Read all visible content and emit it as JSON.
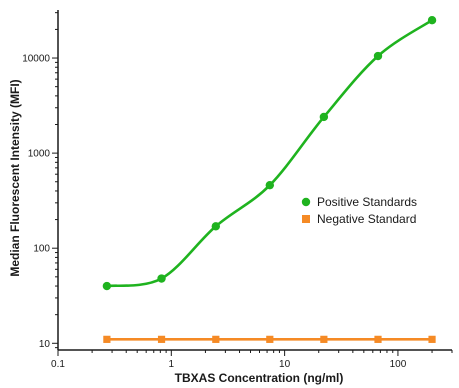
{
  "chart_data": {
    "type": "scatter",
    "title": "",
    "xlabel": "TBXAS Concentration (ng/ml)",
    "ylabel": "Median Fluorescent Intensity (MFI)",
    "xscale": "log",
    "yscale": "log",
    "xlim": [
      0.1,
      300
    ],
    "ylim": [
      8.5,
      32000
    ],
    "x_ticks": [
      0.1,
      1,
      10,
      100
    ],
    "x_tick_labels": [
      "0.1",
      "1",
      "10",
      "100"
    ],
    "y_ticks": [
      10,
      100,
      1000,
      10000
    ],
    "y_tick_labels": [
      "10",
      "100",
      "1000",
      "10000"
    ],
    "grid": false,
    "legend_position": "right",
    "series": [
      {
        "name": "Positive Standards",
        "color": "#1fb31f",
        "marker": "circle",
        "fit": "4PL curve",
        "x": [
          0.27,
          0.82,
          2.47,
          7.4,
          22.2,
          66.7,
          200
        ],
        "y": [
          40,
          48,
          170,
          460,
          2400,
          10500,
          25000
        ]
      },
      {
        "name": "Negative Standard",
        "color": "#f58a25",
        "marker": "square",
        "fit": "line",
        "x": [
          0.27,
          0.82,
          2.47,
          7.4,
          22.2,
          66.7,
          200
        ],
        "y": [
          11,
          11,
          11,
          11,
          11,
          11,
          11
        ]
      }
    ]
  }
}
